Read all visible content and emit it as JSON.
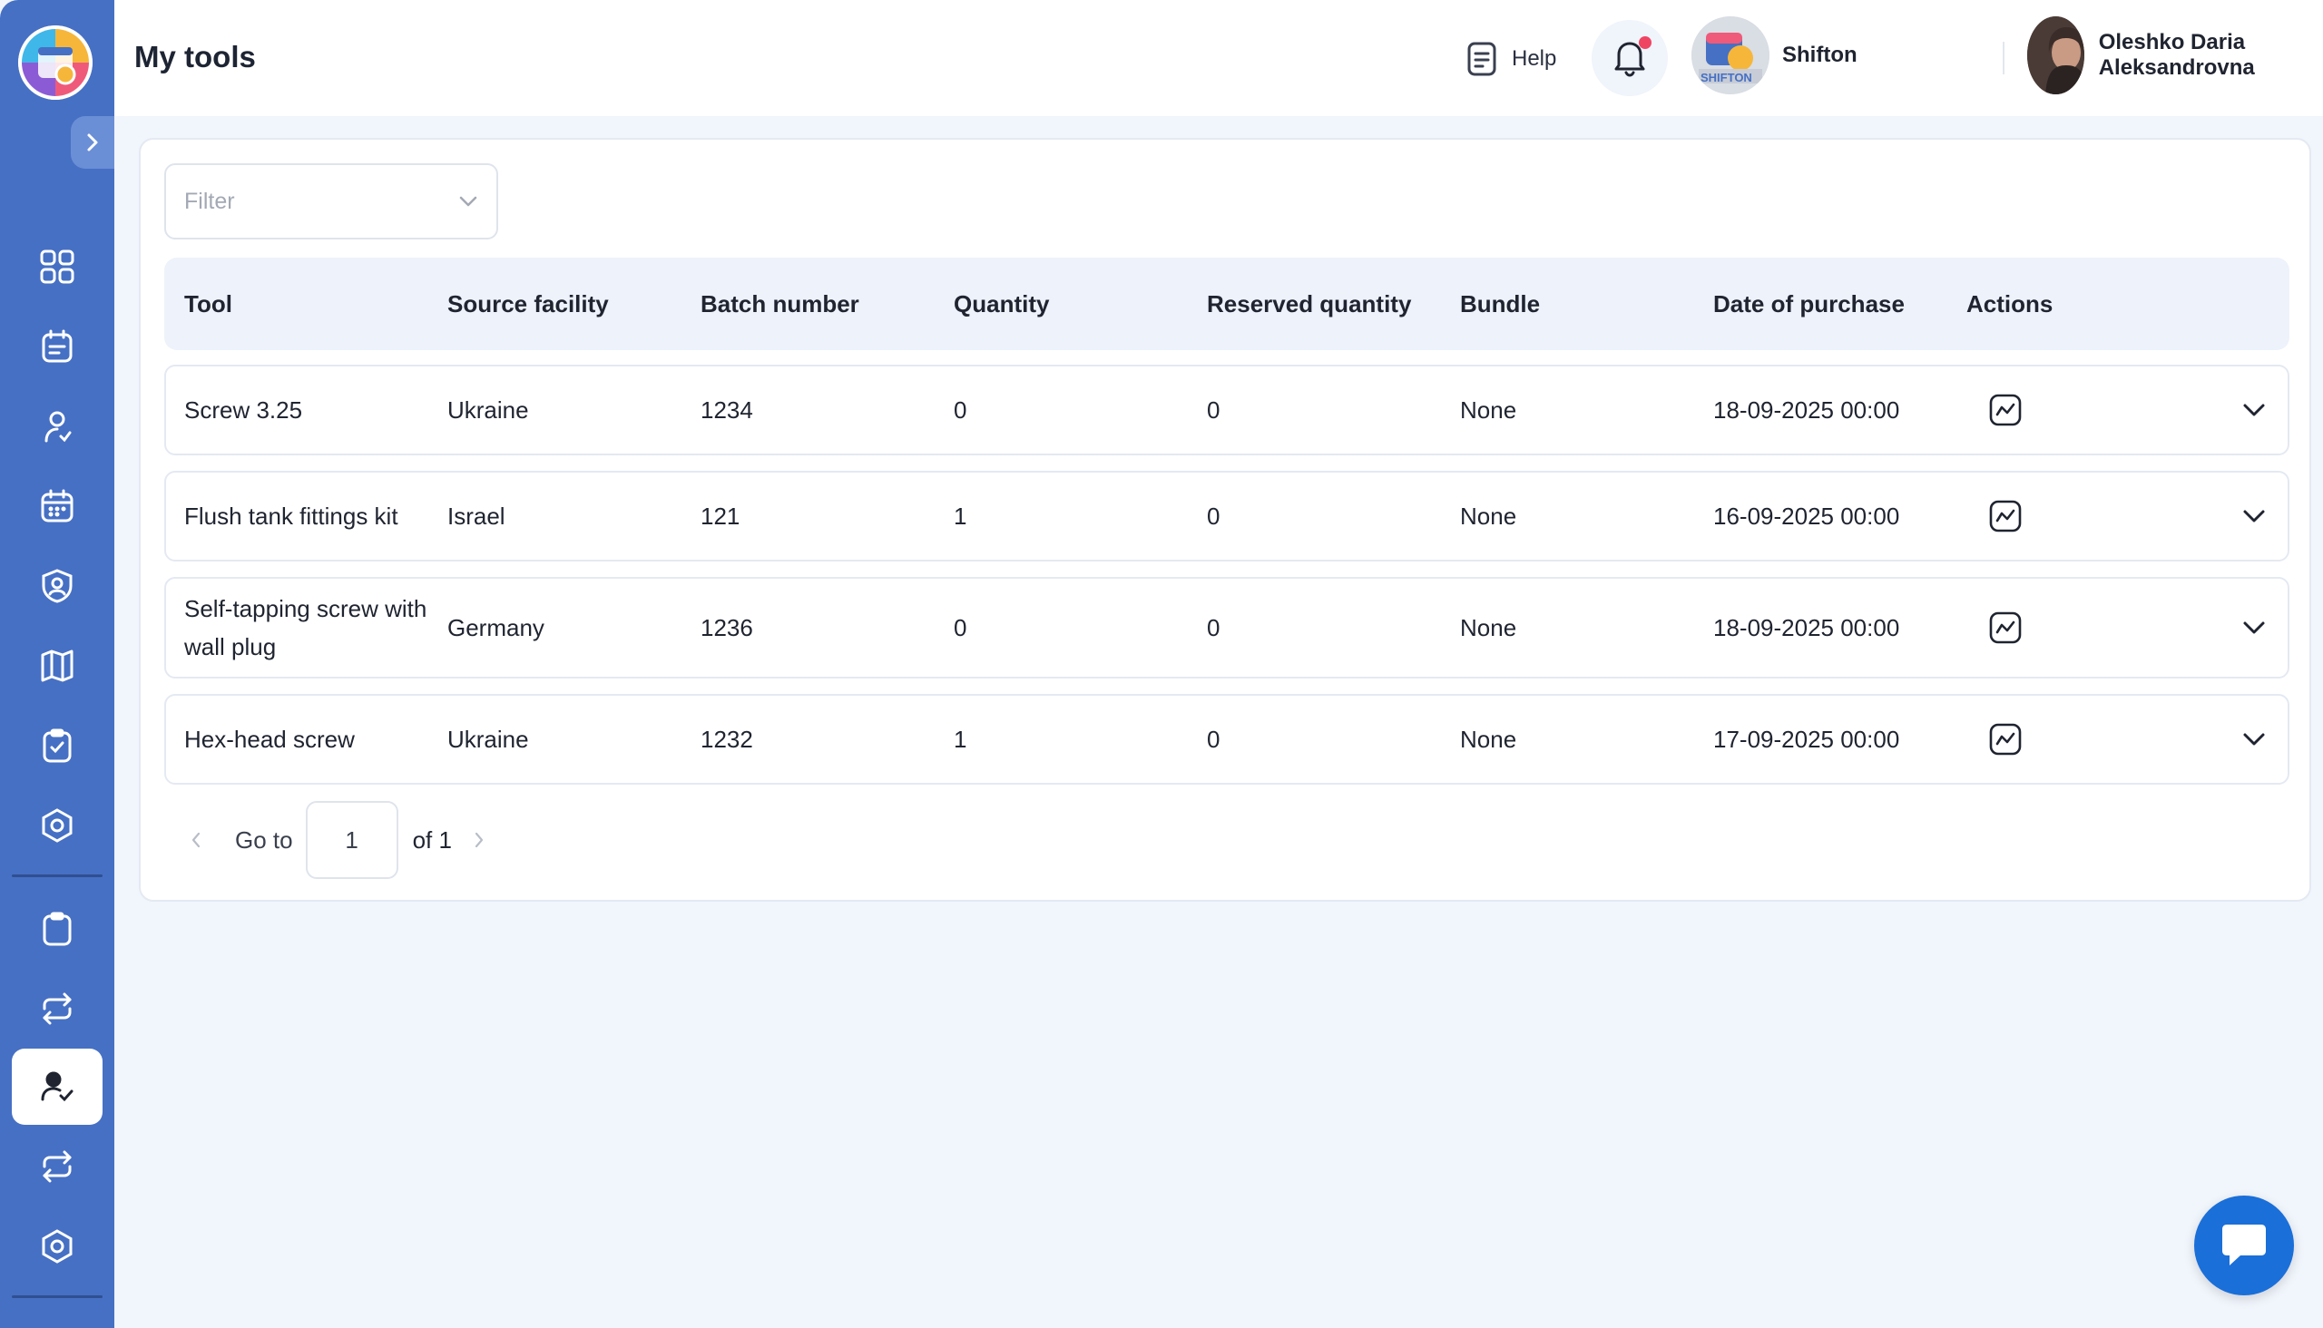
{
  "header": {
    "title": "My tools",
    "help_label": "Help",
    "company_name": "Shifton",
    "user_name": "Oleshko Daria Aleksandrovna",
    "notification_dot_color": "#ef4563"
  },
  "sidebar": {
    "logo": "shifton-logo",
    "items": [
      {
        "icon": "grid-icon"
      },
      {
        "icon": "calendar-list-icon"
      },
      {
        "icon": "user-check-icon"
      },
      {
        "icon": "calendar-icon"
      },
      {
        "icon": "badge-icon"
      },
      {
        "icon": "map-icon"
      },
      {
        "icon": "clipboard-check-icon"
      },
      {
        "icon": "hexagon-settings-icon"
      },
      {
        "icon": "clipboard-icon"
      },
      {
        "icon": "exchange-icon"
      },
      {
        "icon": "user-tools-icon",
        "active": true
      },
      {
        "icon": "exchange-icon"
      },
      {
        "icon": "hexagon-settings-icon"
      }
    ]
  },
  "filter": {
    "placeholder": "Filter"
  },
  "table": {
    "columns": [
      "Tool",
      "Source facility",
      "Batch number",
      "Quantity",
      "Reserved quantity",
      "Bundle",
      "Date of purchase",
      "Actions"
    ],
    "rows": [
      {
        "tool": "Screw 3.25",
        "source": "Ukraine",
        "batch": "1234",
        "quantity": "0",
        "reserved": "0",
        "bundle": "None",
        "date": "18-09-2025 00:00"
      },
      {
        "tool": "Flush tank fittings kit",
        "source": "Israel",
        "batch": "121",
        "quantity": "1",
        "reserved": "0",
        "bundle": "None",
        "date": "16-09-2025 00:00"
      },
      {
        "tool": "Self-tapping screw with wall plug",
        "source": "Germany",
        "batch": "1236",
        "quantity": "0",
        "reserved": "0",
        "bundle": "None",
        "date": "18-09-2025 00:00"
      },
      {
        "tool": "Hex-head screw",
        "source": "Ukraine",
        "batch": "1232",
        "quantity": "1",
        "reserved": "0",
        "bundle": "None",
        "date": "17-09-2025 00:00"
      }
    ]
  },
  "pagination": {
    "goto_label": "Go to",
    "current_page": "1",
    "of_label": "of 1"
  },
  "colors": {
    "sidebar": "#4670c4",
    "accent": "#1a6fd9"
  }
}
